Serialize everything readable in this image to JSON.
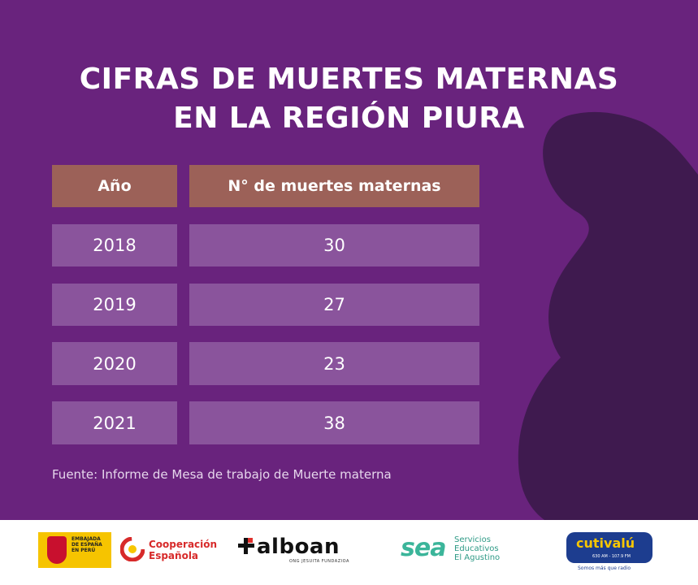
{
  "title": {
    "line1": "CIFRAS DE MUERTES MATERNAS",
    "line2": "EN LA REGIÓN PIURA"
  },
  "table": {
    "headers": [
      "Año",
      "N° de muertes maternas"
    ],
    "rows": [
      {
        "year": "2018",
        "deaths": "30"
      },
      {
        "year": "2019",
        "deaths": "27"
      },
      {
        "year": "2020",
        "deaths": "23"
      },
      {
        "year": "2021",
        "deaths": "38"
      }
    ]
  },
  "source": "Fuente: Informe de Mesa de trabajo de Muerte materna",
  "footer": {
    "embajada": [
      "EMBAJADA",
      "DE ESPAÑA",
      "EN PERÚ"
    ],
    "cooperacion": [
      "Cooperación",
      "Española"
    ],
    "alboan": {
      "name": "alboan",
      "sub": "ONG JESUITA FUNDAZIOA"
    },
    "sea": {
      "mark": "sea",
      "lines": [
        "Servicios",
        "Educativos",
        "El Agustino"
      ]
    },
    "cutivalu": {
      "name": "cutivalú",
      "freq": "630 AM - 107.9 FM",
      "tagline": "Somos más que radio"
    }
  },
  "colors": {
    "background": "#69237d",
    "silhouette": "#3f1a4f",
    "header_cell": "#9c6158",
    "row_cell": "#8a549c"
  }
}
